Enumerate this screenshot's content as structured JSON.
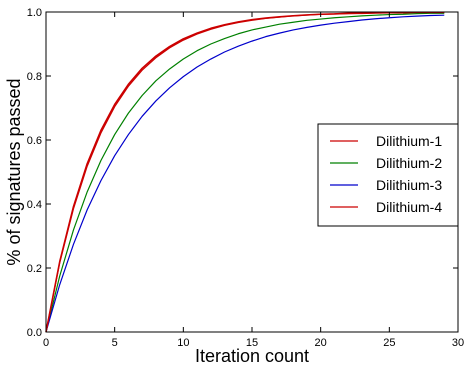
{
  "chart_data": {
    "type": "line",
    "title": "",
    "xlabel": "Iteration count",
    "ylabel": "% of signatures passed",
    "xlim": [
      0,
      30
    ],
    "ylim": [
      0.0,
      1.0
    ],
    "xticks": [
      "0",
      "5",
      "10",
      "15",
      "20",
      "25",
      "30"
    ],
    "yticks": [
      "0.0",
      "0.2",
      "0.4",
      "0.6",
      "0.8",
      "1.0"
    ],
    "grid": false,
    "legend_position": "right",
    "x": [
      0,
      1,
      2,
      3,
      4,
      5,
      6,
      7,
      8,
      9,
      10,
      11,
      12,
      13,
      14,
      15,
      16,
      17,
      18,
      19,
      20,
      21,
      22,
      23,
      24,
      25,
      26,
      27,
      28,
      29
    ],
    "series": [
      {
        "name": "Dilithium-1",
        "color": "#cc0000",
        "values": [
          0.0,
          0.216,
          0.385,
          0.518,
          0.622,
          0.704,
          0.768,
          0.818,
          0.857,
          0.888,
          0.912,
          0.931,
          0.946,
          0.958,
          0.967,
          0.974,
          0.98,
          0.984,
          0.988,
          0.99,
          0.993,
          0.994,
          0.995,
          0.996,
          0.997,
          0.998,
          0.998,
          0.999,
          0.999,
          0.999
        ]
      },
      {
        "name": "Dilithium-2",
        "color": "#008000",
        "values": [
          0.0,
          0.175,
          0.319,
          0.438,
          0.536,
          0.617,
          0.684,
          0.739,
          0.785,
          0.822,
          0.853,
          0.879,
          0.9,
          0.917,
          0.932,
          0.944,
          0.953,
          0.962,
          0.968,
          0.974,
          0.978,
          0.982,
          0.985,
          0.988,
          0.99,
          0.992,
          0.993,
          0.995,
          0.996,
          0.996
        ]
      },
      {
        "name": "Dilithium-3",
        "color": "#0000cc",
        "values": [
          0.0,
          0.148,
          0.274,
          0.382,
          0.473,
          0.551,
          0.617,
          0.674,
          0.722,
          0.763,
          0.798,
          0.828,
          0.853,
          0.875,
          0.893,
          0.909,
          0.923,
          0.934,
          0.944,
          0.952,
          0.959,
          0.965,
          0.97,
          0.975,
          0.979,
          0.982,
          0.985,
          0.987,
          0.989,
          0.99
        ]
      },
      {
        "name": "Dilithium-4",
        "color": "#cc0000",
        "values": [
          0.0,
          0.22,
          0.392,
          0.526,
          0.63,
          0.711,
          0.774,
          0.824,
          0.862,
          0.892,
          0.916,
          0.934,
          0.949,
          0.96,
          0.969,
          0.976,
          0.981,
          0.985,
          0.988,
          0.991,
          0.993,
          0.994,
          0.996,
          0.996,
          0.997,
          0.998,
          0.998,
          0.999,
          0.999,
          0.999
        ]
      }
    ]
  }
}
